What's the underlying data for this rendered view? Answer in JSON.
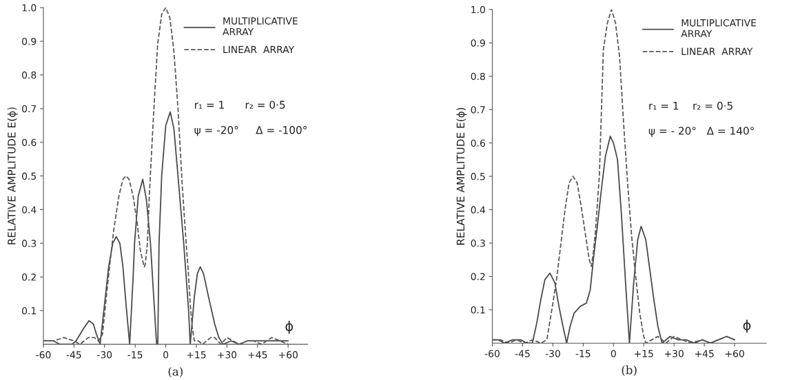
{
  "chart_data": [
    {
      "type": "line",
      "title": "(a)",
      "xlabel": "ϕ",
      "ylabel": "RELATIVE AMPLITUDE E(ϕ)",
      "annotations": [
        "r₁ = 1      r₂ = 0·5",
        "ψ = -20°     Δ = -100°"
      ],
      "legend": "top right",
      "xlim": [
        -60,
        69.6
      ],
      "ylim": [
        0,
        1.0
      ],
      "xticks": [
        {
          "value": -60,
          "label": "-60"
        },
        {
          "value": -45,
          "label": "-45"
        },
        {
          "value": -30,
          "label": "-30"
        },
        {
          "value": -15,
          "label": "-15"
        },
        0,
        {
          "value": 15,
          "label": "+15"
        },
        {
          "value": 30,
          "label": "+30"
        },
        {
          "value": 45,
          "label": "+45"
        },
        {
          "value": 60,
          "label": "+60"
        }
      ],
      "yticks": [
        0.1,
        0.2,
        0.3,
        0.4,
        0.5,
        0.6,
        0.7,
        0.8,
        0.9,
        {
          "value": 1.0,
          "label": "1.0"
        }
      ],
      "series": [
        {
          "name": "MULTIPLICATIVE\nARRAY",
          "color": "#4a4a4a",
          "line_style": "solid",
          "x": [
            -60,
            -55,
            -52,
            -48,
            -46,
            -44,
            -42,
            -40,
            -37.6,
            -35.5,
            -34,
            -32.2,
            -30,
            -28,
            -26,
            -24.3,
            -22.5,
            -21,
            -19.5,
            -17.7,
            -16,
            -15.3,
            -13.5,
            -11.3,
            -9.5,
            -7.5,
            -6,
            -4.5,
            -3.9,
            -3.3,
            -2,
            0,
            2.2,
            4,
            6,
            8.8,
            11.2,
            12,
            14,
            15.5,
            16.9,
            18.5,
            21,
            24,
            26,
            28.1,
            32,
            36,
            40,
            45,
            50,
            55,
            60
          ],
          "values": [
            0.01,
            0.01,
            0.0,
            0.0,
            0.0,
            0.01,
            0.03,
            0.05,
            0.07,
            0.06,
            0.03,
            0.0,
            0.12,
            0.23,
            0.3,
            0.32,
            0.3,
            0.23,
            0.12,
            0.0,
            0.2,
            0.3,
            0.44,
            0.49,
            0.43,
            0.3,
            0.15,
            0.0,
            0.0,
            0.3,
            0.5,
            0.65,
            0.69,
            0.64,
            0.5,
            0.3,
            0.1,
            0.0,
            0.14,
            0.21,
            0.23,
            0.21,
            0.14,
            0.06,
            0.02,
            0.0,
            0.01,
            0.0,
            0.01,
            0.01,
            0.01,
            0.01,
            0.01
          ]
        },
        {
          "name": "LINEAR  ARRAY",
          "color": "#5a5a5a",
          "line_style": "dashed",
          "x": [
            -60,
            -55,
            -50,
            -45,
            -42,
            -38,
            -35,
            -33,
            -31,
            -29,
            -27,
            -25.5,
            -23,
            -21,
            -19.5,
            -18,
            -16,
            -14,
            -12.5,
            -11,
            -10.5,
            -10,
            -9,
            -8,
            -6,
            -4,
            -2,
            0,
            2,
            4,
            6,
            8,
            10,
            11,
            12,
            13,
            14,
            16,
            18,
            20,
            22,
            24,
            27,
            30,
            33,
            36,
            40,
            43,
            47,
            52,
            56,
            60
          ],
          "values": [
            0.01,
            0.01,
            0.02,
            0.01,
            0.0,
            0.02,
            0.02,
            0.01,
            0.03,
            0.15,
            0.26,
            0.34,
            0.44,
            0.49,
            0.5,
            0.49,
            0.44,
            0.36,
            0.28,
            0.24,
            0.23,
            0.24,
            0.3,
            0.45,
            0.68,
            0.89,
            0.98,
            1.0,
            0.97,
            0.87,
            0.7,
            0.48,
            0.3,
            0.22,
            0.12,
            0.05,
            0.01,
            0.01,
            0.0,
            0.01,
            0.02,
            0.02,
            0.0,
            0.02,
            0.01,
            0.0,
            0.01,
            0.01,
            0.0,
            0.02,
            0.01,
            0.0
          ]
        }
      ]
    },
    {
      "type": "line",
      "title": "(b)",
      "xlabel": "ϕ",
      "ylabel": "RELATIVE AMPLITUDE E(ϕ)",
      "annotations": [
        "r₁ = 1    r₂ = 0·5",
        "ψ = - 20°   Δ = 140°"
      ],
      "legend": "top right",
      "xlim": [
        -60,
        75.6
      ],
      "ylim": [
        0,
        1.0
      ],
      "xticks": [
        {
          "value": -60,
          "label": "-60"
        },
        {
          "value": -45,
          "label": "-45"
        },
        {
          "value": -30,
          "label": "-30"
        },
        {
          "value": -15,
          "label": "-15"
        },
        0,
        {
          "value": 15,
          "label": "+15"
        },
        {
          "value": 30,
          "label": "+30"
        },
        {
          "value": 45,
          "label": "+45"
        },
        {
          "value": 60,
          "label": "+60"
        }
      ],
      "yticks": [
        0.1,
        0.2,
        0.3,
        0.4,
        0.5,
        0.6,
        0.7,
        0.8,
        0.9,
        {
          "value": 1.0,
          "label": "1.0"
        }
      ],
      "series": [
        {
          "name": "MULTIPLICATIVE\nARRAY",
          "color": "#4a4a4a",
          "line_style": "solid",
          "x": [
            -60,
            -57,
            -54,
            -50,
            -46,
            -43,
            -40.2,
            -38,
            -36,
            -34,
            -31.5,
            -29,
            -27,
            -25,
            -23.2,
            -21.5,
            -19.5,
            -16.5,
            -13.4,
            -11.5,
            -9.8,
            -8,
            -6,
            -4,
            -1.6,
            0,
            2,
            4,
            6,
            7.9,
            10,
            12,
            13.7,
            16,
            18,
            20,
            22,
            24.1,
            28,
            32,
            36,
            40,
            44,
            48,
            52,
            56,
            60
          ],
          "values": [
            0.01,
            0.01,
            0.0,
            0.01,
            0.01,
            0.0,
            0.0,
            0.06,
            0.13,
            0.19,
            0.21,
            0.18,
            0.11,
            0.05,
            0.0,
            0.05,
            0.09,
            0.11,
            0.12,
            0.16,
            0.26,
            0.35,
            0.46,
            0.56,
            0.62,
            0.6,
            0.55,
            0.38,
            0.18,
            0.0,
            0.18,
            0.31,
            0.35,
            0.31,
            0.22,
            0.13,
            0.05,
            0.0,
            0.02,
            0.01,
            0.01,
            0.0,
            0.01,
            0.0,
            0.01,
            0.02,
            0.01
          ]
        },
        {
          "name": "LINEAR  ARRAY",
          "color": "#5a5a5a",
          "line_style": "dashed",
          "x": [
            -60,
            -56,
            -52,
            -48,
            -44,
            -40,
            -36,
            -33,
            -30,
            -28,
            -26,
            -24,
            -22,
            -20,
            -18,
            -16,
            -14,
            -12,
            -11,
            -10,
            -9,
            -7,
            -5,
            -3,
            -1,
            1,
            3,
            5,
            7,
            9,
            11,
            13,
            15,
            16,
            19,
            22,
            26,
            30,
            34,
            38,
            44,
            48,
            52,
            56,
            60
          ],
          "values": [
            0.01,
            0.01,
            0.0,
            0.01,
            0.0,
            0.01,
            0.0,
            0.01,
            0.12,
            0.2,
            0.3,
            0.4,
            0.48,
            0.5,
            0.48,
            0.41,
            0.33,
            0.25,
            0.23,
            0.27,
            0.33,
            0.5,
            0.88,
            0.96,
            1.0,
            0.96,
            0.86,
            0.66,
            0.48,
            0.32,
            0.2,
            0.09,
            0.02,
            0.0,
            0.01,
            0.02,
            0.0,
            0.02,
            0.01,
            0.0,
            0.01,
            0.0,
            0.01,
            0.02,
            0.01
          ]
        }
      ]
    }
  ]
}
